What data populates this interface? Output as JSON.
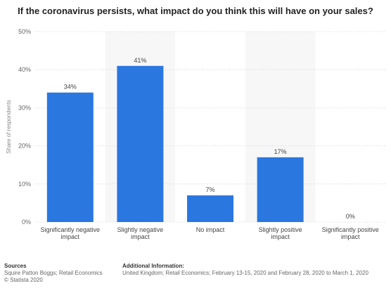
{
  "chart_data": {
    "type": "bar",
    "title": "If the coronavirus persists, what impact do you think this will have on your sales?",
    "categories": [
      "Significantly negative impact",
      "Slightly negative impact",
      "No impact",
      "Slightly positive impact",
      "Significantly positive impact"
    ],
    "values": [
      34,
      41,
      7,
      17,
      0
    ],
    "value_labels": [
      "34%",
      "41%",
      "7%",
      "17%",
      "0%"
    ],
    "ylabel": "Share of respondents",
    "xlabel": "",
    "ylim": [
      0,
      50
    ],
    "yticks": [
      0,
      10,
      20,
      30,
      40,
      50
    ],
    "ytick_labels": [
      "0%",
      "10%",
      "20%",
      "30%",
      "40%",
      "50%"
    ],
    "grid": true,
    "bar_color": "#2a77e0"
  },
  "footer": {
    "sources_heading": "Sources",
    "sources_line1": "Squire Patton Boggs; Retail Economics",
    "sources_line2": "© Statista 2020",
    "info_heading": "Additional Information:",
    "info_line": "United Kingdom; Retail Economics; February 13-15, 2020 and February 28, 2020 to March 1, 2020"
  }
}
